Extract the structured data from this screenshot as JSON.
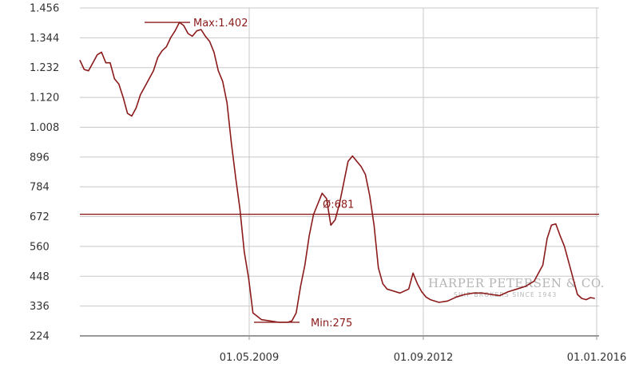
{
  "chart_data": {
    "type": "line",
    "title": "",
    "xlabel": "",
    "ylabel": "",
    "x_ticks": [
      "01.05.2009",
      "01.09.2012",
      "01.01.2016"
    ],
    "y_ticks": [
      "1.456",
      "1.344",
      "1.232",
      "1.120",
      "1.008",
      "896",
      "784",
      "672",
      "560",
      "448",
      "336",
      "224"
    ],
    "ylim": [
      224,
      1456
    ],
    "xlim": [
      "2006-01-01",
      "2016-01-01"
    ],
    "grid": true,
    "series": [
      {
        "color": "#8b1a1a",
        "x": [
          "2006-01",
          "2006-02",
          "2006-03",
          "2006-04",
          "2006-05",
          "2006-06",
          "2006-07",
          "2006-08",
          "2006-09",
          "2006-10",
          "2006-11",
          "2006-12",
          "2007-01",
          "2007-02",
          "2007-03",
          "2007-04",
          "2007-05",
          "2007-06",
          "2007-07",
          "2007-08",
          "2007-09",
          "2007-10",
          "2007-11",
          "2007-12",
          "2008-01",
          "2008-02",
          "2008-03",
          "2008-04",
          "2008-05",
          "2008-06",
          "2008-07",
          "2008-08",
          "2008-09",
          "2008-10",
          "2008-11",
          "2008-12",
          "2009-01",
          "2009-02",
          "2009-03",
          "2009-04",
          "2009-05",
          "2009-07",
          "2009-09",
          "2009-11",
          "2010-01",
          "2010-02",
          "2010-03",
          "2010-04",
          "2010-05",
          "2010-06",
          "2010-07",
          "2010-08",
          "2010-09",
          "2010-10",
          "2010-11",
          "2010-12",
          "2011-01",
          "2011-02",
          "2011-03",
          "2011-04",
          "2011-05",
          "2011-06",
          "2011-07",
          "2011-08",
          "2011-09",
          "2011-10",
          "2011-11",
          "2011-12",
          "2012-01",
          "2012-03",
          "2012-05",
          "2012-06",
          "2012-07",
          "2012-08",
          "2012-09",
          "2012-10",
          "2012-12",
          "2013-02",
          "2013-04",
          "2013-06",
          "2013-08",
          "2013-10",
          "2013-12",
          "2014-02",
          "2014-04",
          "2014-06",
          "2014-08",
          "2014-10",
          "2014-12",
          "2015-01",
          "2015-02",
          "2015-03",
          "2015-04",
          "2015-05",
          "2015-06",
          "2015-07",
          "2015-08",
          "2015-09",
          "2015-10",
          "2015-11",
          "2015-12"
        ],
        "values": [
          1260,
          1225,
          1220,
          1250,
          1280,
          1290,
          1250,
          1250,
          1190,
          1170,
          1120,
          1060,
          1050,
          1080,
          1130,
          1160,
          1190,
          1220,
          1270,
          1295,
          1310,
          1345,
          1370,
          1402,
          1390,
          1360,
          1350,
          1370,
          1375,
          1350,
          1330,
          1290,
          1220,
          1180,
          1100,
          950,
          820,
          700,
          540,
          440,
          310,
          285,
          280,
          275,
          275,
          280,
          310,
          410,
          490,
          600,
          680,
          720,
          760,
          740,
          640,
          660,
          720,
          800,
          880,
          900,
          880,
          860,
          830,
          750,
          640,
          480,
          420,
          400,
          395,
          385,
          400,
          460,
          420,
          390,
          370,
          360,
          350,
          355,
          370,
          380,
          385,
          385,
          380,
          375,
          390,
          400,
          410,
          430,
          490,
          590,
          640,
          645,
          600,
          560,
          500,
          440,
          380,
          365,
          360,
          368,
          365
        ],
        "reference_lines": [
          {
            "label": "Max:1.402",
            "value": 1402
          },
          {
            "label": "Min:275",
            "value": 275
          },
          {
            "label": "Ø:681",
            "value": 681
          }
        ]
      }
    ],
    "watermark": {
      "text": "HARPER PETERSEN & CO.",
      "subtext": "SHIP BROKERS SINCE 1943"
    }
  }
}
